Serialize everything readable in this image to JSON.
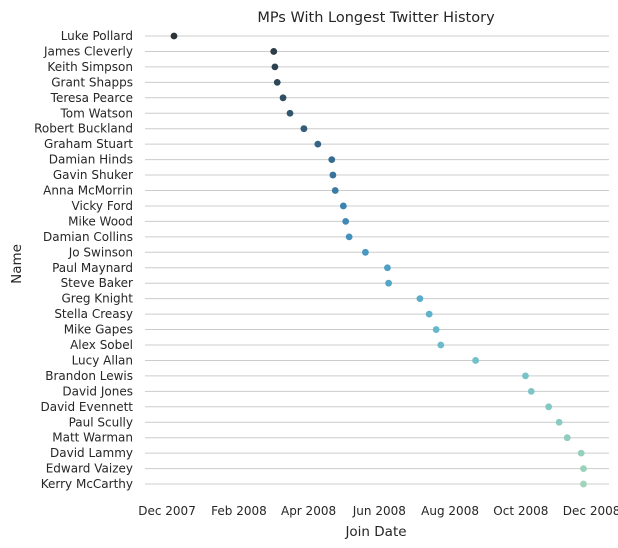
{
  "chart_data": {
    "type": "scatter",
    "title": "MPs With Longest Twitter History",
    "xlabel": "Join Date",
    "ylabel": "Name",
    "grid": "horizontal",
    "x_ticks": [
      {
        "label": "Dec 2007",
        "date": "2007-12-01"
      },
      {
        "label": "Feb 2008",
        "date": "2008-02-01"
      },
      {
        "label": "Apr 2008",
        "date": "2008-04-01"
      },
      {
        "label": "Jun 2008",
        "date": "2008-06-01"
      },
      {
        "label": "Aug 2008",
        "date": "2008-08-01"
      },
      {
        "label": "Oct 2008",
        "date": "2008-10-01"
      },
      {
        "label": "Dec 2008",
        "date": "2008-12-01"
      }
    ],
    "xlim": [
      "2007-11-12",
      "2008-12-16"
    ],
    "points": [
      {
        "name": "Luke Pollard",
        "date": "2007-12-07",
        "color": "#2a3439"
      },
      {
        "name": "James Cleverly",
        "date": "2008-03-02",
        "color": "#2c3d48"
      },
      {
        "name": "Keith Simpson",
        "date": "2008-03-03",
        "color": "#2d4250"
      },
      {
        "name": "Grant Shapps",
        "date": "2008-03-05",
        "color": "#2f4859"
      },
      {
        "name": "Teresa Pearce",
        "date": "2008-03-10",
        "color": "#304f63"
      },
      {
        "name": "Tom Watson",
        "date": "2008-03-16",
        "color": "#31566e"
      },
      {
        "name": "Robert Buckland",
        "date": "2008-03-28",
        "color": "#335d79"
      },
      {
        "name": "Graham Stuart",
        "date": "2008-04-09",
        "color": "#356485"
      },
      {
        "name": "Damian Hinds",
        "date": "2008-04-21",
        "color": "#376c90"
      },
      {
        "name": "Gavin Shuker",
        "date": "2008-04-22",
        "color": "#39739b"
      },
      {
        "name": "Anna McMorrin",
        "date": "2008-04-24",
        "color": "#3b7ba5"
      },
      {
        "name": "Vicky Ford",
        "date": "2008-05-01",
        "color": "#3e82ae"
      },
      {
        "name": "Mike Wood",
        "date": "2008-05-03",
        "color": "#418ab6"
      },
      {
        "name": "Damian Collins",
        "date": "2008-05-06",
        "color": "#4591bd"
      },
      {
        "name": "Jo Swinson",
        "date": "2008-05-20",
        "color": "#4998c2"
      },
      {
        "name": "Paul Maynard",
        "date": "2008-06-08",
        "color": "#4e9fc6"
      },
      {
        "name": "Steve Baker",
        "date": "2008-06-09",
        "color": "#53a6c8"
      },
      {
        "name": "Greg Knight",
        "date": "2008-07-06",
        "color": "#59acca"
      },
      {
        "name": "Stella Creasy",
        "date": "2008-07-14",
        "color": "#5fb2cb"
      },
      {
        "name": "Mike Gapes",
        "date": "2008-07-20",
        "color": "#65b7cb"
      },
      {
        "name": "Alex Sobel",
        "date": "2008-07-24",
        "color": "#6bbccb"
      },
      {
        "name": "Lucy Allan",
        "date": "2008-08-23",
        "color": "#71c0ca"
      },
      {
        "name": "Brandon Lewis",
        "date": "2008-10-05",
        "color": "#77c3c7"
      },
      {
        "name": "David Jones",
        "date": "2008-10-10",
        "color": "#7dc6c5"
      },
      {
        "name": "David Evennett",
        "date": "2008-10-25",
        "color": "#83c9c3"
      },
      {
        "name": "Paul Scully",
        "date": "2008-11-03",
        "color": "#89cbc1"
      },
      {
        "name": "Matt Warman",
        "date": "2008-11-10",
        "color": "#8fcdbf"
      },
      {
        "name": "David Lammy",
        "date": "2008-11-22",
        "color": "#95d0bd"
      },
      {
        "name": "Edward Vaizey",
        "date": "2008-11-24",
        "color": "#9bd2bc"
      },
      {
        "name": "Kerry McCarthy",
        "date": "2008-11-24",
        "color": "#a1d4bb"
      }
    ]
  }
}
